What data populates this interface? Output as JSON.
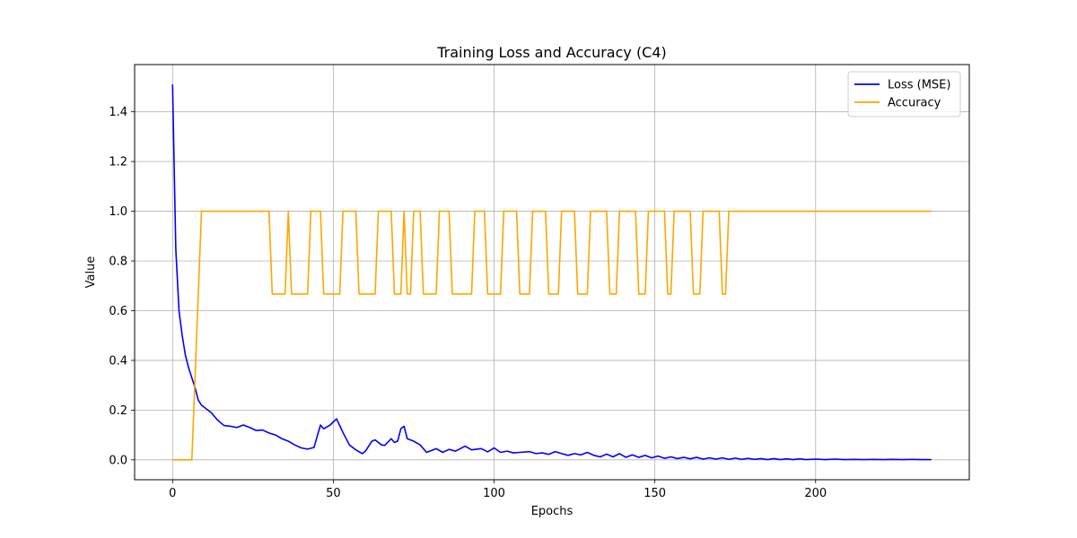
{
  "chart_data": {
    "type": "line",
    "title": "Training Loss and Accuracy (C4)",
    "xlabel": "Epochs",
    "ylabel": "Value",
    "xlim": [
      -11.8,
      247.8
    ],
    "ylim": [
      -0.08,
      1.59
    ],
    "xticks": [
      0,
      50,
      100,
      150,
      200
    ],
    "yticks": [
      0.0,
      0.2,
      0.4,
      0.6,
      0.8,
      1.0,
      1.2,
      1.4
    ],
    "xtick_labels": [
      "0",
      "50",
      "100",
      "150",
      "200"
    ],
    "ytick_labels": [
      "0.0",
      "0.2",
      "0.4",
      "0.6",
      "0.8",
      "1.0",
      "1.2",
      "1.4"
    ],
    "grid": true,
    "legend_position": "upper right",
    "series": [
      {
        "name": "Loss (MSE)",
        "color": "#0000ff",
        "points": [
          [
            0,
            1.51
          ],
          [
            1,
            0.85
          ],
          [
            2,
            0.6
          ],
          [
            3,
            0.5
          ],
          [
            4,
            0.42
          ],
          [
            5,
            0.37
          ],
          [
            6,
            0.33
          ],
          [
            7,
            0.29
          ],
          [
            8,
            0.24
          ],
          [
            9,
            0.22
          ],
          [
            10,
            0.21
          ],
          [
            12,
            0.19
          ],
          [
            14,
            0.16
          ],
          [
            16,
            0.138
          ],
          [
            18,
            0.135
          ],
          [
            20,
            0.13
          ],
          [
            22,
            0.14
          ],
          [
            24,
            0.13
          ],
          [
            26,
            0.118
          ],
          [
            28,
            0.12
          ],
          [
            30,
            0.108
          ],
          [
            32,
            0.1
          ],
          [
            34,
            0.085
          ],
          [
            36,
            0.075
          ],
          [
            38,
            0.06
          ],
          [
            40,
            0.048
          ],
          [
            42,
            0.043
          ],
          [
            44,
            0.05
          ],
          [
            46,
            0.14
          ],
          [
            47,
            0.125
          ],
          [
            49,
            0.14
          ],
          [
            51,
            0.165
          ],
          [
            53,
            0.11
          ],
          [
            55,
            0.06
          ],
          [
            57,
            0.04
          ],
          [
            59,
            0.025
          ],
          [
            60,
            0.035
          ],
          [
            62,
            0.075
          ],
          [
            63,
            0.08
          ],
          [
            65,
            0.06
          ],
          [
            66,
            0.058
          ],
          [
            68,
            0.085
          ],
          [
            69,
            0.07
          ],
          [
            70,
            0.075
          ],
          [
            71,
            0.125
          ],
          [
            72,
            0.135
          ],
          [
            73,
            0.085
          ],
          [
            75,
            0.075
          ],
          [
            77,
            0.06
          ],
          [
            79,
            0.03
          ],
          [
            80,
            0.035
          ],
          [
            82,
            0.045
          ],
          [
            84,
            0.03
          ],
          [
            86,
            0.042
          ],
          [
            88,
            0.035
          ],
          [
            91,
            0.055
          ],
          [
            93,
            0.04
          ],
          [
            96,
            0.045
          ],
          [
            98,
            0.032
          ],
          [
            100,
            0.048
          ],
          [
            102,
            0.03
          ],
          [
            104,
            0.035
          ],
          [
            106,
            0.028
          ],
          [
            108,
            0.03
          ],
          [
            111,
            0.033
          ],
          [
            113,
            0.025
          ],
          [
            115,
            0.028
          ],
          [
            117,
            0.022
          ],
          [
            119,
            0.033
          ],
          [
            121,
            0.025
          ],
          [
            123,
            0.018
          ],
          [
            125,
            0.025
          ],
          [
            127,
            0.02
          ],
          [
            129,
            0.03
          ],
          [
            131,
            0.018
          ],
          [
            133,
            0.012
          ],
          [
            135,
            0.023
          ],
          [
            137,
            0.012
          ],
          [
            139,
            0.025
          ],
          [
            141,
            0.01
          ],
          [
            143,
            0.02
          ],
          [
            145,
            0.01
          ],
          [
            147,
            0.018
          ],
          [
            149,
            0.008
          ],
          [
            151,
            0.015
          ],
          [
            153,
            0.006
          ],
          [
            155,
            0.012
          ],
          [
            157,
            0.005
          ],
          [
            159,
            0.01
          ],
          [
            161,
            0.004
          ],
          [
            163,
            0.01
          ],
          [
            165,
            0.003
          ],
          [
            167,
            0.008
          ],
          [
            169,
            0.003
          ],
          [
            171,
            0.008
          ],
          [
            173,
            0.002
          ],
          [
            175,
            0.007
          ],
          [
            177,
            0.002
          ],
          [
            179,
            0.006
          ],
          [
            181,
            0.002
          ],
          [
            183,
            0.005
          ],
          [
            185,
            0.001
          ],
          [
            187,
            0.005
          ],
          [
            189,
            0.001
          ],
          [
            191,
            0.004
          ],
          [
            193,
            0.001
          ],
          [
            195,
            0.004
          ],
          [
            197,
            0.001
          ],
          [
            200,
            0.003
          ],
          [
            203,
            0.001
          ],
          [
            206,
            0.003
          ],
          [
            209,
            0.001
          ],
          [
            212,
            0.002
          ],
          [
            215,
            0.001
          ],
          [
            218,
            0.002
          ],
          [
            221,
            0.001
          ],
          [
            224,
            0.002
          ],
          [
            227,
            0.001
          ],
          [
            230,
            0.002
          ],
          [
            233,
            0.001
          ],
          [
            236,
            0.001
          ]
        ]
      },
      {
        "name": "Accuracy",
        "color": "#ffa500",
        "points": [
          [
            0,
            0.0
          ],
          [
            6,
            0.0
          ],
          [
            9,
            1.0
          ],
          [
            30,
            1.0
          ],
          [
            31,
            0.667
          ],
          [
            35,
            0.667
          ],
          [
            36,
            1.0
          ],
          [
            37,
            0.667
          ],
          [
            42,
            0.667
          ],
          [
            43,
            1.0
          ],
          [
            46,
            1.0
          ],
          [
            47,
            0.667
          ],
          [
            52,
            0.667
          ],
          [
            53,
            1.0
          ],
          [
            57,
            1.0
          ],
          [
            58,
            0.667
          ],
          [
            63,
            0.667
          ],
          [
            64,
            1.0
          ],
          [
            68,
            1.0
          ],
          [
            69,
            0.667
          ],
          [
            71,
            0.667
          ],
          [
            72,
            1.0
          ],
          [
            73,
            0.667
          ],
          [
            74,
            0.667
          ],
          [
            75,
            1.0
          ],
          [
            77,
            1.0
          ],
          [
            78,
            0.667
          ],
          [
            82,
            0.667
          ],
          [
            83,
            1.0
          ],
          [
            86,
            1.0
          ],
          [
            87,
            0.667
          ],
          [
            93,
            0.667
          ],
          [
            94,
            1.0
          ],
          [
            97,
            1.0
          ],
          [
            98,
            0.667
          ],
          [
            102,
            0.667
          ],
          [
            103,
            1.0
          ],
          [
            107,
            1.0
          ],
          [
            108,
            0.667
          ],
          [
            111,
            0.667
          ],
          [
            112,
            1.0
          ],
          [
            116,
            1.0
          ],
          [
            117,
            0.667
          ],
          [
            120,
            0.667
          ],
          [
            121,
            1.0
          ],
          [
            125,
            1.0
          ],
          [
            126,
            0.667
          ],
          [
            129,
            0.667
          ],
          [
            130,
            1.0
          ],
          [
            135,
            1.0
          ],
          [
            136,
            0.667
          ],
          [
            138,
            0.667
          ],
          [
            139,
            1.0
          ],
          [
            144,
            1.0
          ],
          [
            145,
            0.667
          ],
          [
            147,
            0.667
          ],
          [
            148,
            1.0
          ],
          [
            153,
            1.0
          ],
          [
            154,
            0.667
          ],
          [
            155,
            0.667
          ],
          [
            156,
            1.0
          ],
          [
            161,
            1.0
          ],
          [
            162,
            0.667
          ],
          [
            164,
            0.667
          ],
          [
            165,
            1.0
          ],
          [
            170,
            1.0
          ],
          [
            171,
            0.667
          ],
          [
            172,
            0.667
          ],
          [
            173,
            1.0
          ],
          [
            236,
            1.0
          ]
        ]
      }
    ]
  }
}
